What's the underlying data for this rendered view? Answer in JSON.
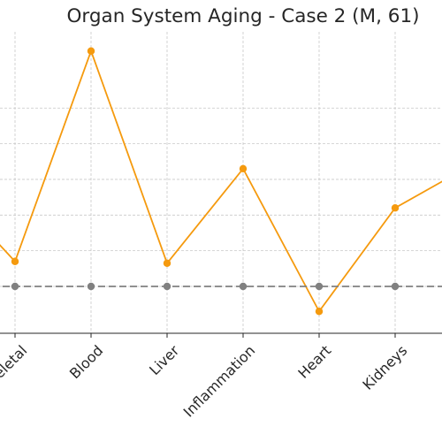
{
  "chart_data": {
    "type": "line",
    "title": "Organ System Aging - Case 2 (M, 61)",
    "categories": [
      "",
      "Musculoskeletal",
      "Blood",
      "Liver",
      "Inflammation",
      "Heart",
      "Kidneys",
      ""
    ],
    "series": [
      {
        "values": [
          3.0,
          0.7,
          6.6,
          0.65,
          3.3,
          -0.7,
          2.2,
          3.4
        ],
        "color": "#f59a0e",
        "line_style": "solid",
        "marker": "circle"
      },
      {
        "values": [
          0,
          0,
          0,
          0,
          0,
          0,
          0,
          0
        ],
        "color": "#808080",
        "line_style": "dashed",
        "marker": "circle"
      }
    ],
    "ylim": [
      -1,
      7.2
    ],
    "grid": true,
    "xlabel": "",
    "ylabel": ""
  }
}
